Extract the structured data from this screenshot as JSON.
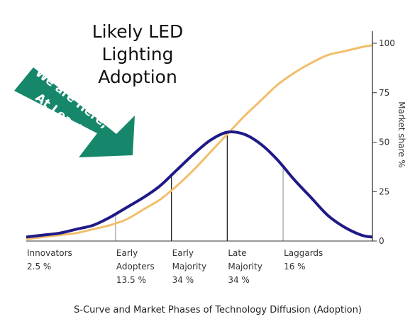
{
  "annotation": {
    "title_lines": [
      "Likely LED",
      "Lighting",
      "Adoption"
    ],
    "arrow_lines": [
      "We are Here,",
      "At Least"
    ],
    "arrow_color": "#16876a"
  },
  "chart_data": {
    "type": "line",
    "title": "S-Curve and Market Phases of Technology Diffusion (Adoption)",
    "y_axis": {
      "label": "Market share %",
      "position": "right",
      "ylim": [
        0,
        100
      ],
      "ticks": [
        0,
        25,
        50,
        75,
        100
      ]
    },
    "x_range": [
      -3.6,
      2.6
    ],
    "series": [
      {
        "curve": "s-curve",
        "color": "#f2be6b",
        "x": [
          -3.6,
          -3.3,
          -3.0,
          -2.7,
          -2.4,
          -2.1,
          -1.8,
          -1.5,
          -1.2,
          -0.9,
          -0.6,
          -0.3,
          0.0,
          0.3,
          0.6,
          0.9,
          1.2,
          1.5,
          1.8,
          2.1,
          2.4,
          2.6
        ],
        "values": [
          1,
          2,
          3,
          4,
          6,
          8,
          11,
          16,
          21,
          28,
          36,
          45,
          54,
          63,
          71,
          79,
          85,
          90,
          94,
          96,
          98,
          99
        ]
      },
      {
        "curve": "bell-curve",
        "color": "#1f1a87",
        "x": [
          -3.6,
          -3.3,
          -3.0,
          -2.7,
          -2.4,
          -2.1,
          -1.8,
          -1.5,
          -1.2,
          -0.9,
          -0.6,
          -0.3,
          0.0,
          0.3,
          0.6,
          0.9,
          1.2,
          1.5,
          1.8,
          2.1,
          2.4,
          2.6
        ],
        "values": [
          2,
          3,
          4,
          6,
          8,
          12,
          17,
          22,
          28,
          36,
          44,
          51,
          55,
          54,
          49,
          41,
          31,
          22,
          13,
          7,
          3,
          2
        ]
      }
    ],
    "phase_boundaries": [
      -2,
      -1,
      0,
      1
    ],
    "phases": [
      {
        "lines": [
          "Innovators",
          "2.5 %"
        ],
        "start": -3.6
      },
      {
        "lines": [
          "Early",
          "Adopters",
          "13.5 %"
        ],
        "start": -2
      },
      {
        "lines": [
          "Early",
          "Majority",
          "34 %"
        ],
        "start": -1
      },
      {
        "lines": [
          "Late",
          "Majority",
          "34 %"
        ],
        "start": 0
      },
      {
        "lines": [
          "Laggards",
          "16 %"
        ],
        "start": 1
      }
    ],
    "grid": false,
    "legend": "none"
  }
}
